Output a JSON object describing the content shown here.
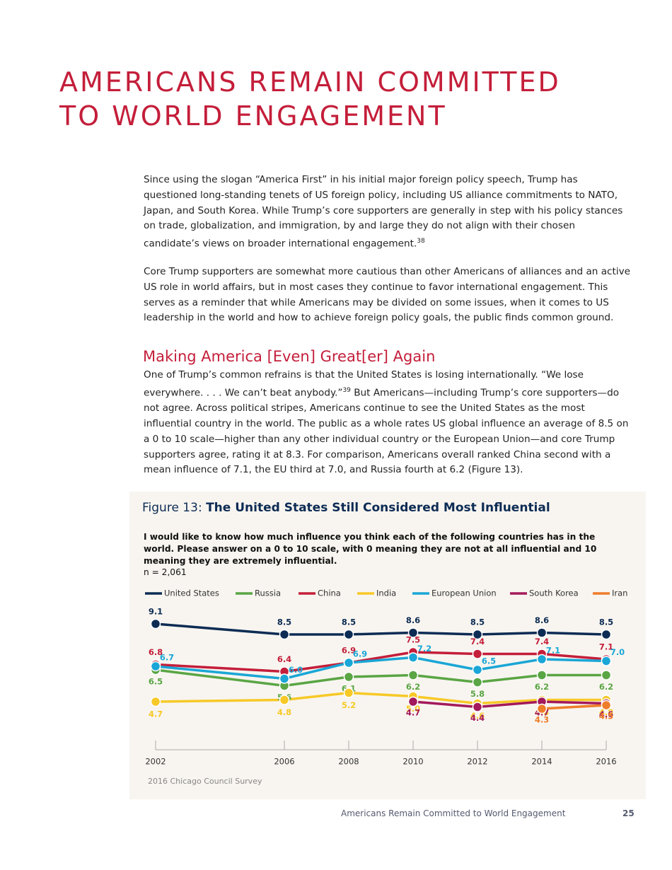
{
  "header": {
    "title_lines": [
      "AMERICANS REMAIN COMMITTED",
      "TO WORLD ENGAGEMENT"
    ]
  },
  "body": {
    "paragraphs": [
      {
        "text": "Since using the slogan “America First” in his initial major foreign policy speech, Trump has questioned long-standing tenets of US foreign policy, including US alliance commitments to NATO, Japan, and South Korea. While Trump’s core supporters are generally in step with his policy stances on trade, globalization, and immigration, by and large they do not align with their chosen candidate’s views on broader international engagement.",
        "note": "38"
      },
      {
        "text": "Core Trump supporters are somewhat more cautious than other Americans of alliances and an active US role in world affairs, but in most cases they continue to favor international engagement. This serves as a reminder that while Americans may be divided on some issues, when it comes to US leadership in the world and how to achieve foreign policy goals, the public finds common ground."
      }
    ],
    "section": {
      "heading": "Making America [Even] Great[er] Again",
      "text_before": "One of Trump’s common refrains is that the United States is losing internationally. “We lose everywhere. . . . We can’t beat anybody.”",
      "note": "39",
      "text_after": " But Americans—including Trump’s core supporters—do not agree. Across political stripes, Americans continue to see the United States as the most influential country in the world. The public as a whole rates US global influence an average of 8.5 on a 0 to 10 scale—higher than any other individual country or the European Union—and core Trump supporters agree, rating it at 8.3. For comparison, Americans overall ranked China second with a mean influence of 7.1, the EU third at 7.0, and Russia fourth at 6.2 (Figure 13)."
    }
  },
  "figure": {
    "label": "Figure 13:",
    "title": "The United States Still Considered Most Influential",
    "question": "I would like to know how much influence you think each of the following countries has in the world. Please answer on a 0 to 10 scale, with 0 meaning they are not at all influential and 10 meaning they are extremely influential.",
    "sample": "n = 2,061",
    "source": "2016 Chicago Council Survey"
  },
  "chart_data": {
    "type": "line",
    "x": [
      2002,
      2006,
      2008,
      2010,
      2012,
      2014,
      2016
    ],
    "xlim": [
      2002,
      2016
    ],
    "ylim": [
      2.4,
      10
    ],
    "series": [
      {
        "name": "United States",
        "color": "#0d2c54",
        "values": [
          9.1,
          8.5,
          8.5,
          8.6,
          8.5,
          8.6,
          8.5
        ]
      },
      {
        "name": "Russia",
        "color": "#5aa544",
        "values": [
          6.5,
          5.6,
          6.1,
          6.2,
          5.8,
          6.2,
          6.2
        ]
      },
      {
        "name": "China",
        "color": "#c41e3a",
        "values": [
          6.8,
          6.4,
          6.9,
          7.5,
          7.4,
          7.4,
          7.1
        ]
      },
      {
        "name": "India",
        "color": "#f7c928",
        "values": [
          4.7,
          4.8,
          5.2,
          5.0,
          4.6,
          4.8,
          4.8
        ],
        "value_labels": [
          "4.7",
          "4.8",
          "5.2",
          "5.0",
          "4.6",
          "4.8",
          "4.8"
        ]
      },
      {
        "name": "European Union",
        "color": "#1aa6d6",
        "values": [
          6.7,
          6.0,
          6.9,
          7.2,
          6.5,
          7.1,
          7.0
        ],
        "value_labels": [
          "6.7",
          "6.0",
          "6.9",
          "7.2",
          "6.5",
          "7.1",
          "7.0"
        ]
      },
      {
        "name": "South Korea",
        "color": "#a3195b",
        "values": [
          null,
          null,
          null,
          4.7,
          4.4,
          4.7,
          4.6
        ]
      },
      {
        "name": "Iran",
        "color": "#ee7d2a",
        "values": [
          null,
          null,
          null,
          null,
          null,
          4.3,
          4.5
        ]
      }
    ]
  },
  "footer": {
    "running_title": "Americans Remain Committed to World Engagement",
    "page": "25"
  }
}
